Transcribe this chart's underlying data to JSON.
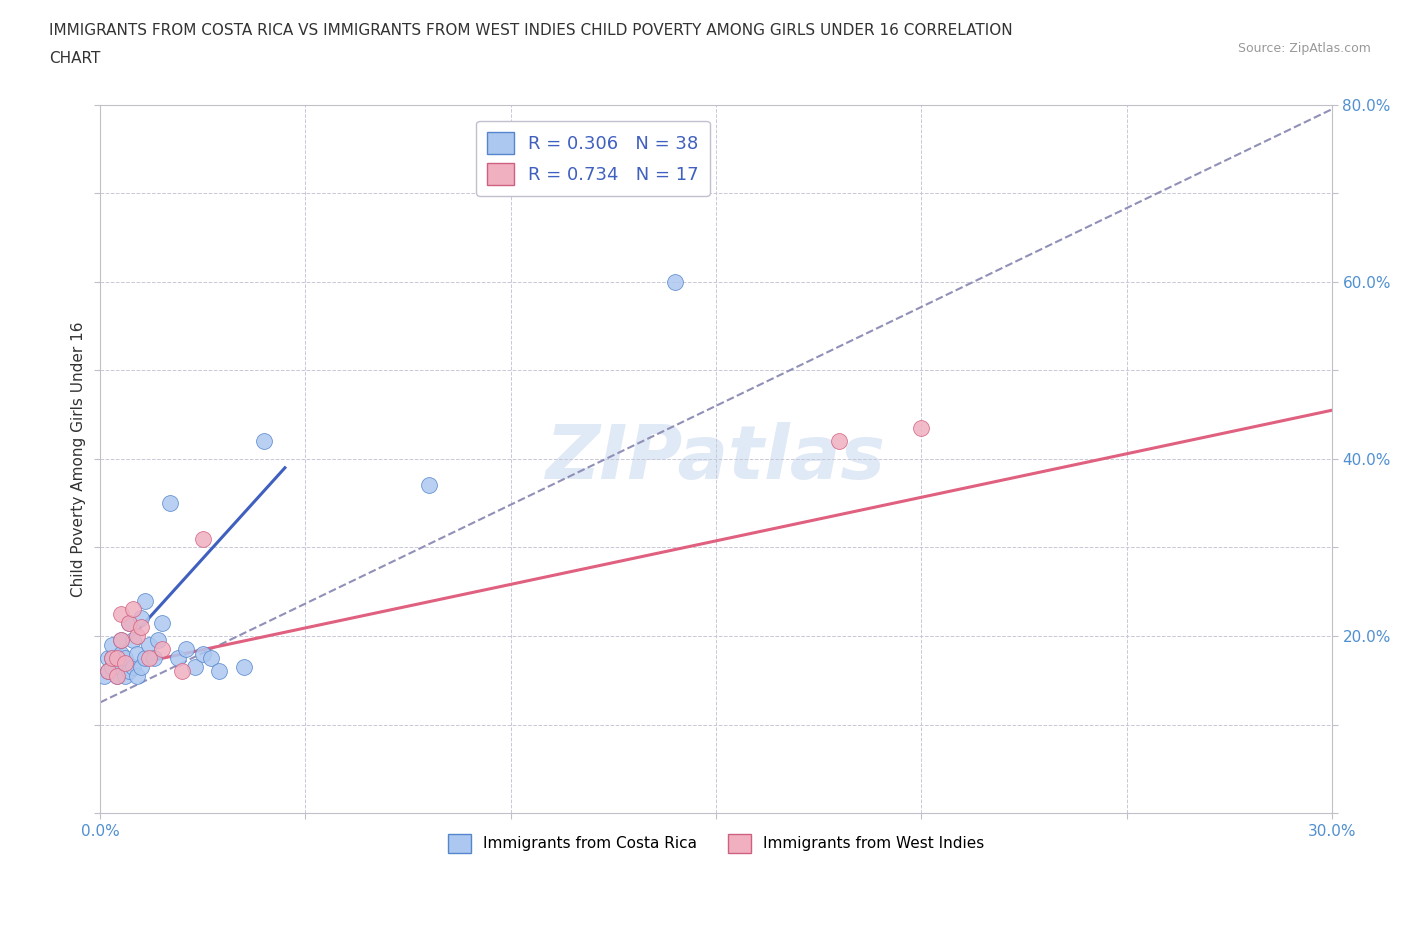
{
  "title_line1": "IMMIGRANTS FROM COSTA RICA VS IMMIGRANTS FROM WEST INDIES CHILD POVERTY AMONG GIRLS UNDER 16 CORRELATION",
  "title_line2": "CHART",
  "source": "Source: ZipAtlas.com",
  "ylabel": "Child Poverty Among Girls Under 16",
  "xlim": [
    0.0,
    0.3
  ],
  "ylim": [
    0.0,
    0.8
  ],
  "costa_rica_fill": "#adc8f0",
  "costa_rica_edge": "#5585cc",
  "west_indies_fill": "#f0b0c0",
  "west_indies_edge": "#d06080",
  "blue_line_color": "#4060c0",
  "pink_line_color": "#e06080",
  "dashed_line_color": "#9090b8",
  "R_costa_rica": 0.306,
  "N_costa_rica": 38,
  "R_west_indies": 0.734,
  "N_west_indies": 17,
  "watermark": "ZIPatlas",
  "legend_label_cr": "Immigrants from Costa Rica",
  "legend_label_wi": "Immigrants from West Indies",
  "tick_label_color": "#5090d0",
  "title_color": "#333333",
  "source_color": "#999999",
  "ylabel_color": "#333333",
  "cr_x": [
    0.001,
    0.002,
    0.002,
    0.003,
    0.003,
    0.003,
    0.004,
    0.004,
    0.005,
    0.005,
    0.005,
    0.006,
    0.006,
    0.007,
    0.007,
    0.008,
    0.008,
    0.009,
    0.009,
    0.01,
    0.01,
    0.011,
    0.011,
    0.012,
    0.013,
    0.014,
    0.015,
    0.017,
    0.019,
    0.021,
    0.023,
    0.025,
    0.027,
    0.029,
    0.035,
    0.04,
    0.08,
    0.14
  ],
  "cr_y": [
    0.155,
    0.16,
    0.175,
    0.165,
    0.175,
    0.19,
    0.155,
    0.175,
    0.165,
    0.18,
    0.195,
    0.155,
    0.175,
    0.16,
    0.215,
    0.165,
    0.195,
    0.155,
    0.18,
    0.165,
    0.22,
    0.175,
    0.24,
    0.19,
    0.175,
    0.195,
    0.215,
    0.35,
    0.175,
    0.185,
    0.165,
    0.18,
    0.175,
    0.16,
    0.165,
    0.42,
    0.37,
    0.6
  ],
  "wi_x": [
    0.002,
    0.003,
    0.004,
    0.004,
    0.005,
    0.005,
    0.006,
    0.007,
    0.008,
    0.009,
    0.01,
    0.012,
    0.015,
    0.02,
    0.025,
    0.18,
    0.2
  ],
  "wi_y": [
    0.16,
    0.175,
    0.155,
    0.175,
    0.195,
    0.225,
    0.17,
    0.215,
    0.23,
    0.2,
    0.21,
    0.175,
    0.185,
    0.16,
    0.31,
    0.42,
    0.435
  ],
  "blue_line_x": [
    0.005,
    0.045
  ],
  "blue_line_y": [
    0.185,
    0.39
  ],
  "dashed_line_x": [
    0.0,
    0.3
  ],
  "dashed_line_y": [
    0.125,
    0.795
  ],
  "pink_line_x": [
    0.0,
    0.3
  ],
  "pink_line_y": [
    0.16,
    0.455
  ]
}
